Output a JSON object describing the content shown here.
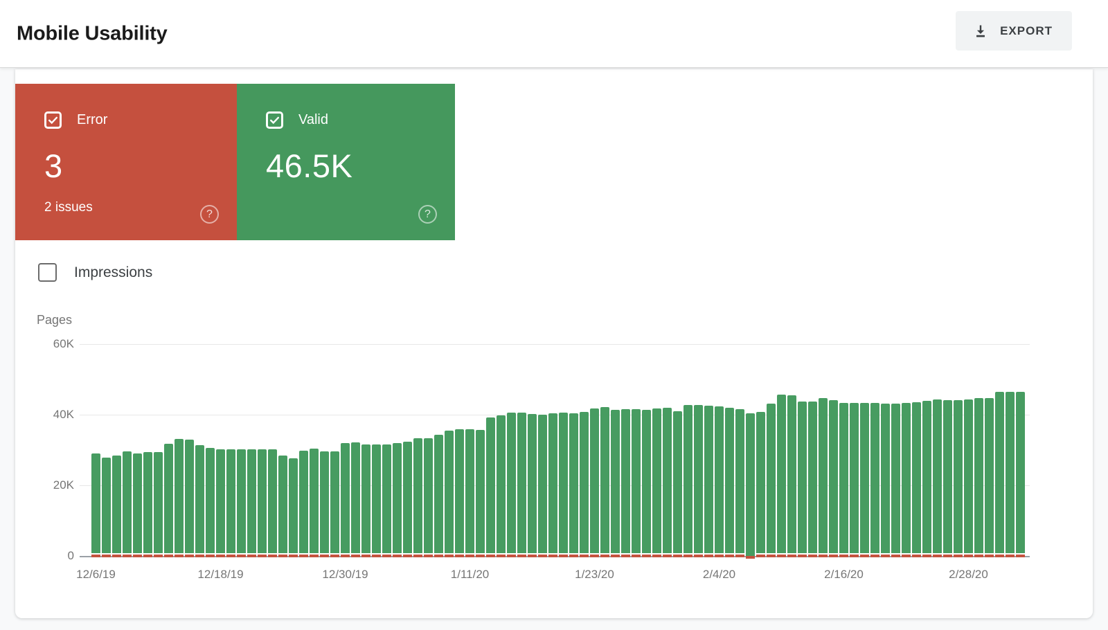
{
  "header": {
    "title": "Mobile Usability",
    "export_label": "EXPORT"
  },
  "summary_cards": [
    {
      "id": "error",
      "label": "Error",
      "value": "3",
      "sub": "2 issues",
      "color": "#C5503E",
      "checked": true
    },
    {
      "id": "valid",
      "label": "Valid",
      "value": "46.5K",
      "color": "#45985D",
      "checked": true
    }
  ],
  "impressions_toggle": {
    "label": "Impressions",
    "checked": false
  },
  "icons": {
    "help": "?",
    "download": "download-arrow",
    "checkbox_checked": "check",
    "checkbox_unchecked": "empty"
  },
  "chart_data": {
    "type": "bar",
    "title": "",
    "xlabel": "",
    "ylabel": "Pages",
    "ylim": [
      0,
      60000
    ],
    "grid": "horizontal",
    "y_axis_ticks": [
      {
        "value": 60000,
        "label": "60K"
      },
      {
        "value": 40000,
        "label": "40K"
      },
      {
        "value": 20000,
        "label": "20K"
      },
      {
        "value": 0,
        "label": "0"
      }
    ],
    "x_axis_ticks": [
      {
        "bar_index": 0,
        "label": "12/6/19"
      },
      {
        "bar_index": 12,
        "label": "12/18/19"
      },
      {
        "bar_index": 24,
        "label": "12/30/19"
      },
      {
        "bar_index": 36,
        "label": "1/11/20"
      },
      {
        "bar_index": 48,
        "label": "1/23/20"
      },
      {
        "bar_index": 60,
        "label": "2/4/20"
      },
      {
        "bar_index": 72,
        "label": "2/16/20"
      },
      {
        "bar_index": 84,
        "label": "2/28/20"
      }
    ],
    "series": [
      {
        "name": "Valid",
        "unit": "pages",
        "color": "#479C61",
        "values_thousands": [
          29.0,
          27.9,
          28.5,
          29.7,
          29.1,
          29.5,
          29.5,
          31.7,
          33.1,
          33.0,
          31.3,
          30.5,
          30.2,
          30.1,
          30.1,
          30.1,
          30.1,
          30.1,
          28.5,
          27.7,
          29.9,
          30.4,
          29.6,
          29.7,
          31.9,
          32.2,
          31.6,
          31.5,
          31.5,
          31.9,
          32.3,
          33.4,
          33.4,
          34.4,
          35.4,
          35.9,
          35.8,
          35.7,
          39.3,
          39.8,
          40.6,
          40.5,
          40.2,
          40.0,
          40.4,
          40.6,
          40.4,
          40.7,
          41.8,
          42.1,
          41.4,
          41.6,
          41.6,
          41.4,
          41.7,
          41.9,
          41.0,
          42.8,
          42.8,
          42.6,
          42.3,
          42.0,
          41.6,
          40.3,
          40.7,
          43.2,
          45.6,
          45.5,
          43.7,
          43.7,
          44.7,
          44.1,
          43.3,
          43.4,
          43.3,
          43.3,
          43.2,
          43.2,
          43.3,
          43.6,
          44.0,
          44.4,
          44.2,
          44.2,
          44.4,
          44.8,
          44.7,
          46.4,
          46.4,
          46.5
        ]
      },
      {
        "name": "Error",
        "unit": "pages",
        "color": "#C4543F",
        "approx_constant_value": 3,
        "display": "thin-baseline-strip",
        "strip_dip_bar_index": 63
      }
    ]
  }
}
